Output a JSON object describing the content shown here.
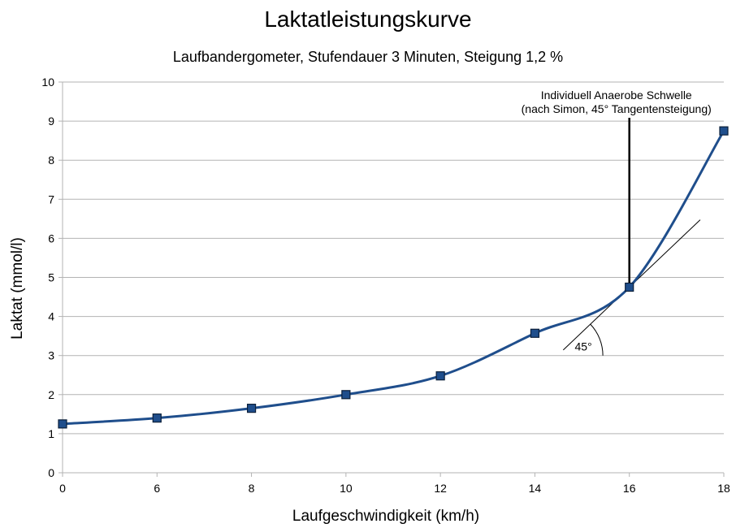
{
  "chart_data": {
    "type": "line",
    "title": "Laktatleistungskurve",
    "subtitle": "Laufbandergometer, Stufendauer 3 Minuten, Steigung 1,2 %",
    "xlabel": "Laufgeschwindigkeit (km/h)",
    "ylabel": "Laktat (mmol/l)",
    "x_categories": [
      "0",
      "6",
      "8",
      "10",
      "12",
      "14",
      "16",
      "18"
    ],
    "ylim": [
      0,
      10
    ],
    "y_ticks": [
      "0",
      "1",
      "2",
      "3",
      "4",
      "5",
      "6",
      "7",
      "8",
      "9",
      "10"
    ],
    "grid": "horizontal",
    "series": [
      {
        "x": [
          0,
          6,
          8,
          10,
          12,
          14,
          16,
          18
        ],
        "values": [
          1.25,
          1.4,
          1.65,
          2.0,
          2.48,
          3.57,
          4.75,
          8.75
        ],
        "color": "#1f4e8c",
        "marker": "square"
      }
    ],
    "annotations": {
      "threshold_line1": "Individuell Anaerobe Schwelle",
      "threshold_line2": "(nach Simon, 45° Tangentensteigung)",
      "threshold_x": 16,
      "angle_label": "45°"
    }
  }
}
